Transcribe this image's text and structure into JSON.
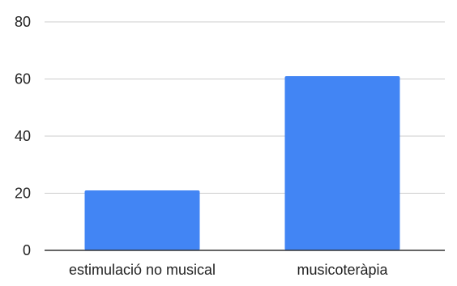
{
  "chart_data": {
    "type": "bar",
    "title": "",
    "xlabel": "",
    "ylabel": "",
    "categories": [
      "estimulació no musical",
      "musicoteràpia"
    ],
    "values": [
      21,
      61
    ],
    "ylim": [
      0,
      80
    ],
    "yticks": [
      0,
      20,
      40,
      60,
      80
    ],
    "grid": true,
    "legend": "none",
    "bar_color": "#4285f4",
    "grid_color": "#cccccc",
    "axis_color": "#333333",
    "text_color": "#222222"
  }
}
